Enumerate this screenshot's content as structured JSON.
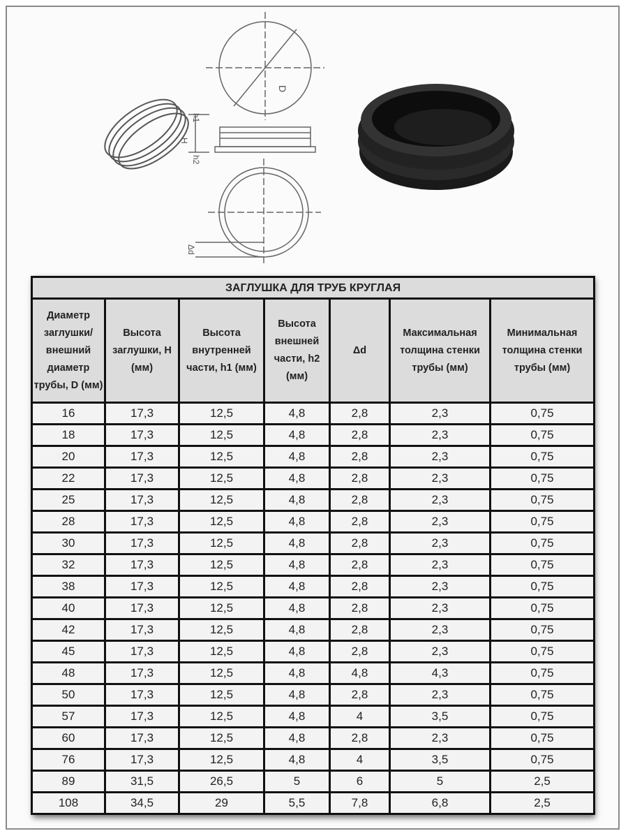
{
  "drawing": {
    "labels": {
      "diameter": "D",
      "height": "H",
      "inner_height": "h1",
      "outer_height": "h2",
      "delta": "Δd"
    }
  },
  "table": {
    "title": "ЗАГЛУШКА  ДЛЯ  ТРУБ КРУГЛАЯ",
    "headers": [
      "Диаметр заглушки/ внешний диаметр трубы, D (мм)",
      "Высота заглушки, H (мм)",
      "Высота внутренней части, h1 (мм)",
      "Высота внешней части, h2 (мм)",
      "Δd",
      "Максимальная толщина стенки трубы (мм)",
      "Минимальная толщина стенки трубы (мм)"
    ],
    "rows": [
      [
        "16",
        "17,3",
        "12,5",
        "4,8",
        "2,8",
        "2,3",
        "0,75"
      ],
      [
        "18",
        "17,3",
        "12,5",
        "4,8",
        "2,8",
        "2,3",
        "0,75"
      ],
      [
        "20",
        "17,3",
        "12,5",
        "4,8",
        "2,8",
        "2,3",
        "0,75"
      ],
      [
        "22",
        "17,3",
        "12,5",
        "4,8",
        "2,8",
        "2,3",
        "0,75"
      ],
      [
        "25",
        "17,3",
        "12,5",
        "4,8",
        "2,8",
        "2,3",
        "0,75"
      ],
      [
        "28",
        "17,3",
        "12,5",
        "4,8",
        "2,8",
        "2,3",
        "0,75"
      ],
      [
        "30",
        "17,3",
        "12,5",
        "4,8",
        "2,8",
        "2,3",
        "0,75"
      ],
      [
        "32",
        "17,3",
        "12,5",
        "4,8",
        "2,8",
        "2,3",
        "0,75"
      ],
      [
        "38",
        "17,3",
        "12,5",
        "4,8",
        "2,8",
        "2,3",
        "0,75"
      ],
      [
        "40",
        "17,3",
        "12,5",
        "4,8",
        "2,8",
        "2,3",
        "0,75"
      ],
      [
        "42",
        "17,3",
        "12,5",
        "4,8",
        "2,8",
        "2,3",
        "0,75"
      ],
      [
        "45",
        "17,3",
        "12,5",
        "4,8",
        "2,8",
        "2,3",
        "0,75"
      ],
      [
        "48",
        "17,3",
        "12,5",
        "4,8",
        "4,8",
        "4,3",
        "0,75"
      ],
      [
        "50",
        "17,3",
        "12,5",
        "4,8",
        "2,8",
        "2,3",
        "0,75"
      ],
      [
        "57",
        "17,3",
        "12,5",
        "4,8",
        "4",
        "3,5",
        "0,75"
      ],
      [
        "60",
        "17,3",
        "12,5",
        "4,8",
        "2,8",
        "2,3",
        "0,75"
      ],
      [
        "76",
        "17,3",
        "12,5",
        "4,8",
        "4",
        "3,5",
        "0,75"
      ],
      [
        "89",
        "31,5",
        "26,5",
        "5",
        "6",
        "5",
        "2,5"
      ],
      [
        "108",
        "34,5",
        "29",
        "5,5",
        "7,8",
        "6,8",
        "2,5"
      ]
    ]
  }
}
